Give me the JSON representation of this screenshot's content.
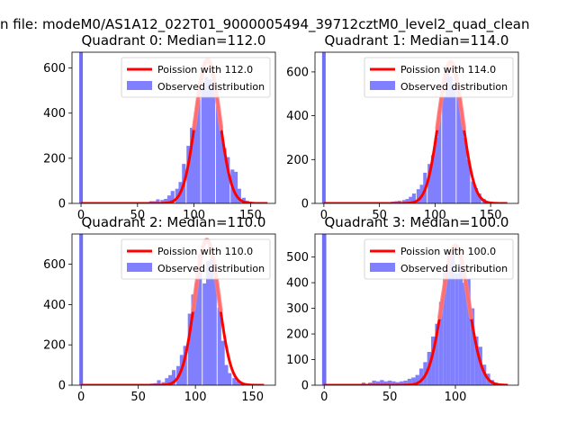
{
  "figure": {
    "suptitle": "n file: modeM0/AS1A12_022T01_9000005494_39712cztM0_level2_quad_clean",
    "colors": {
      "hist": "#8080ff",
      "fit": "#ff0000",
      "fit_highlight": "#ff8080",
      "zero_bar": "#6f6ff5"
    }
  },
  "chart_data": [
    {
      "type": "bar",
      "title": "Quadrant 0: Median=112.0",
      "legend": {
        "position": "top-right",
        "entries": [
          "Poission with 112.0",
          "Observed distribution"
        ]
      },
      "xlim": [
        -8,
        172
      ],
      "ylim": [
        0,
        670
      ],
      "xticks": [
        0,
        50,
        100,
        150
      ],
      "yticks": [
        0,
        200,
        400,
        600
      ],
      "bin_width": 3.3,
      "zero_bin": {
        "x": 0,
        "value": 670
      },
      "histogram": [
        [
          62,
          10
        ],
        [
          65,
          10
        ],
        [
          68,
          18
        ],
        [
          72,
          15
        ],
        [
          75,
          20
        ],
        [
          78,
          35
        ],
        [
          81,
          55
        ],
        [
          85,
          65
        ],
        [
          88,
          95
        ],
        [
          91,
          175
        ],
        [
          95,
          255
        ],
        [
          98,
          335
        ],
        [
          101,
          370
        ],
        [
          104,
          460
        ],
        [
          108,
          510
        ],
        [
          111,
          560
        ],
        [
          114,
          550
        ],
        [
          117,
          505
        ],
        [
          121,
          430
        ],
        [
          124,
          320
        ],
        [
          127,
          245
        ],
        [
          130,
          205
        ],
        [
          134,
          150
        ],
        [
          137,
          140
        ],
        [
          140,
          65
        ],
        [
          144,
          25
        ],
        [
          147,
          12
        ],
        [
          150,
          8
        ]
      ],
      "fit": {
        "lambda": 112.0,
        "peak": 635,
        "xrange": [
          0,
          165
        ]
      }
    },
    {
      "type": "bar",
      "title": "Quadrant 1: Median=114.0",
      "legend": {
        "position": "top-right",
        "entries": [
          "Poission with 114.0",
          "Observed distribution"
        ]
      },
      "xlim": [
        -8,
        175
      ],
      "ylim": [
        0,
        690
      ],
      "xticks": [
        0,
        50,
        100,
        150
      ],
      "yticks": [
        0,
        200,
        400,
        600
      ],
      "bin_width": 3.3,
      "zero_bin": {
        "x": 0,
        "value": 690
      },
      "histogram": [
        [
          55,
          5
        ],
        [
          62,
          8
        ],
        [
          65,
          10
        ],
        [
          68,
          12
        ],
        [
          72,
          15
        ],
        [
          75,
          20
        ],
        [
          78,
          30
        ],
        [
          81,
          45
        ],
        [
          85,
          65
        ],
        [
          88,
          85
        ],
        [
          91,
          140
        ],
        [
          95,
          180
        ],
        [
          98,
          220
        ],
        [
          101,
          300
        ],
        [
          104,
          420
        ],
        [
          108,
          490
        ],
        [
          111,
          600
        ],
        [
          114,
          580
        ],
        [
          117,
          545
        ],
        [
          121,
          510
        ],
        [
          124,
          400
        ],
        [
          127,
          300
        ],
        [
          130,
          200
        ],
        [
          134,
          100
        ],
        [
          137,
          70
        ],
        [
          140,
          45
        ],
        [
          144,
          20
        ],
        [
          147,
          10
        ],
        [
          150,
          5
        ]
      ],
      "fit": {
        "lambda": 114.0,
        "peak": 645,
        "xrange": [
          0,
          165
        ]
      }
    },
    {
      "type": "bar",
      "title": "Quadrant 2: Median=110.0",
      "legend": {
        "position": "top-right",
        "entries": [
          "Poission with 110.0",
          "Observed distribution"
        ]
      },
      "xlim": [
        -8,
        170
      ],
      "ylim": [
        0,
        750
      ],
      "xticks": [
        0,
        50,
        100,
        150
      ],
      "yticks": [
        0,
        200,
        400,
        600
      ],
      "bin_width": 3.3,
      "zero_bin": {
        "x": 0,
        "value": 750
      },
      "histogram": [
        [
          40,
          5
        ],
        [
          55,
          5
        ],
        [
          62,
          8
        ],
        [
          65,
          10
        ],
        [
          68,
          25
        ],
        [
          72,
          15
        ],
        [
          75,
          35
        ],
        [
          78,
          50
        ],
        [
          81,
          75
        ],
        [
          85,
          95
        ],
        [
          88,
          150
        ],
        [
          91,
          195
        ],
        [
          95,
          355
        ],
        [
          98,
          450
        ],
        [
          101,
          505
        ],
        [
          104,
          650
        ],
        [
          108,
          505
        ],
        [
          111,
          615
        ],
        [
          114,
          625
        ],
        [
          117,
          525
        ],
        [
          121,
          385
        ],
        [
          124,
          220
        ],
        [
          127,
          100
        ],
        [
          130,
          60
        ],
        [
          134,
          35
        ],
        [
          137,
          20
        ],
        [
          140,
          10
        ],
        [
          144,
          5
        ]
      ],
      "fit": {
        "lambda": 110.0,
        "peak": 720,
        "xrange": [
          0,
          160
        ]
      }
    },
    {
      "type": "bar",
      "title": "Quadrant 3: Median=100.0",
      "legend": {
        "position": "top-right",
        "entries": [
          "Poission with 100.0",
          "Observed distribution"
        ]
      },
      "xlim": [
        -7,
        148
      ],
      "ylim": [
        0,
        590
      ],
      "xticks": [
        0,
        50,
        100
      ],
      "yticks": [
        0,
        100,
        200,
        300,
        400,
        500
      ],
      "bin_width": 3.0,
      "zero_bin": {
        "x": 0,
        "value": 590
      },
      "histogram": [
        [
          25,
          5
        ],
        [
          30,
          10
        ],
        [
          35,
          10
        ],
        [
          38,
          18
        ],
        [
          41,
          15
        ],
        [
          44,
          20
        ],
        [
          47,
          15
        ],
        [
          50,
          18
        ],
        [
          53,
          15
        ],
        [
          56,
          12
        ],
        [
          59,
          15
        ],
        [
          62,
          18
        ],
        [
          65,
          25
        ],
        [
          68,
          30
        ],
        [
          71,
          40
        ],
        [
          74,
          65
        ],
        [
          77,
          90
        ],
        [
          80,
          130
        ],
        [
          83,
          190
        ],
        [
          86,
          240
        ],
        [
          89,
          325
        ],
        [
          92,
          440
        ],
        [
          95,
          530
        ],
        [
          98,
          530
        ],
        [
          101,
          435
        ],
        [
          104,
          470
        ],
        [
          107,
          400
        ],
        [
          110,
          415
        ],
        [
          113,
          300
        ],
        [
          116,
          190
        ],
        [
          119,
          150
        ],
        [
          122,
          80
        ],
        [
          125,
          45
        ],
        [
          128,
          20
        ],
        [
          131,
          10
        ]
      ],
      "fit": {
        "lambda": 100.0,
        "peak": 545,
        "xrange": [
          0,
          140
        ]
      }
    }
  ]
}
